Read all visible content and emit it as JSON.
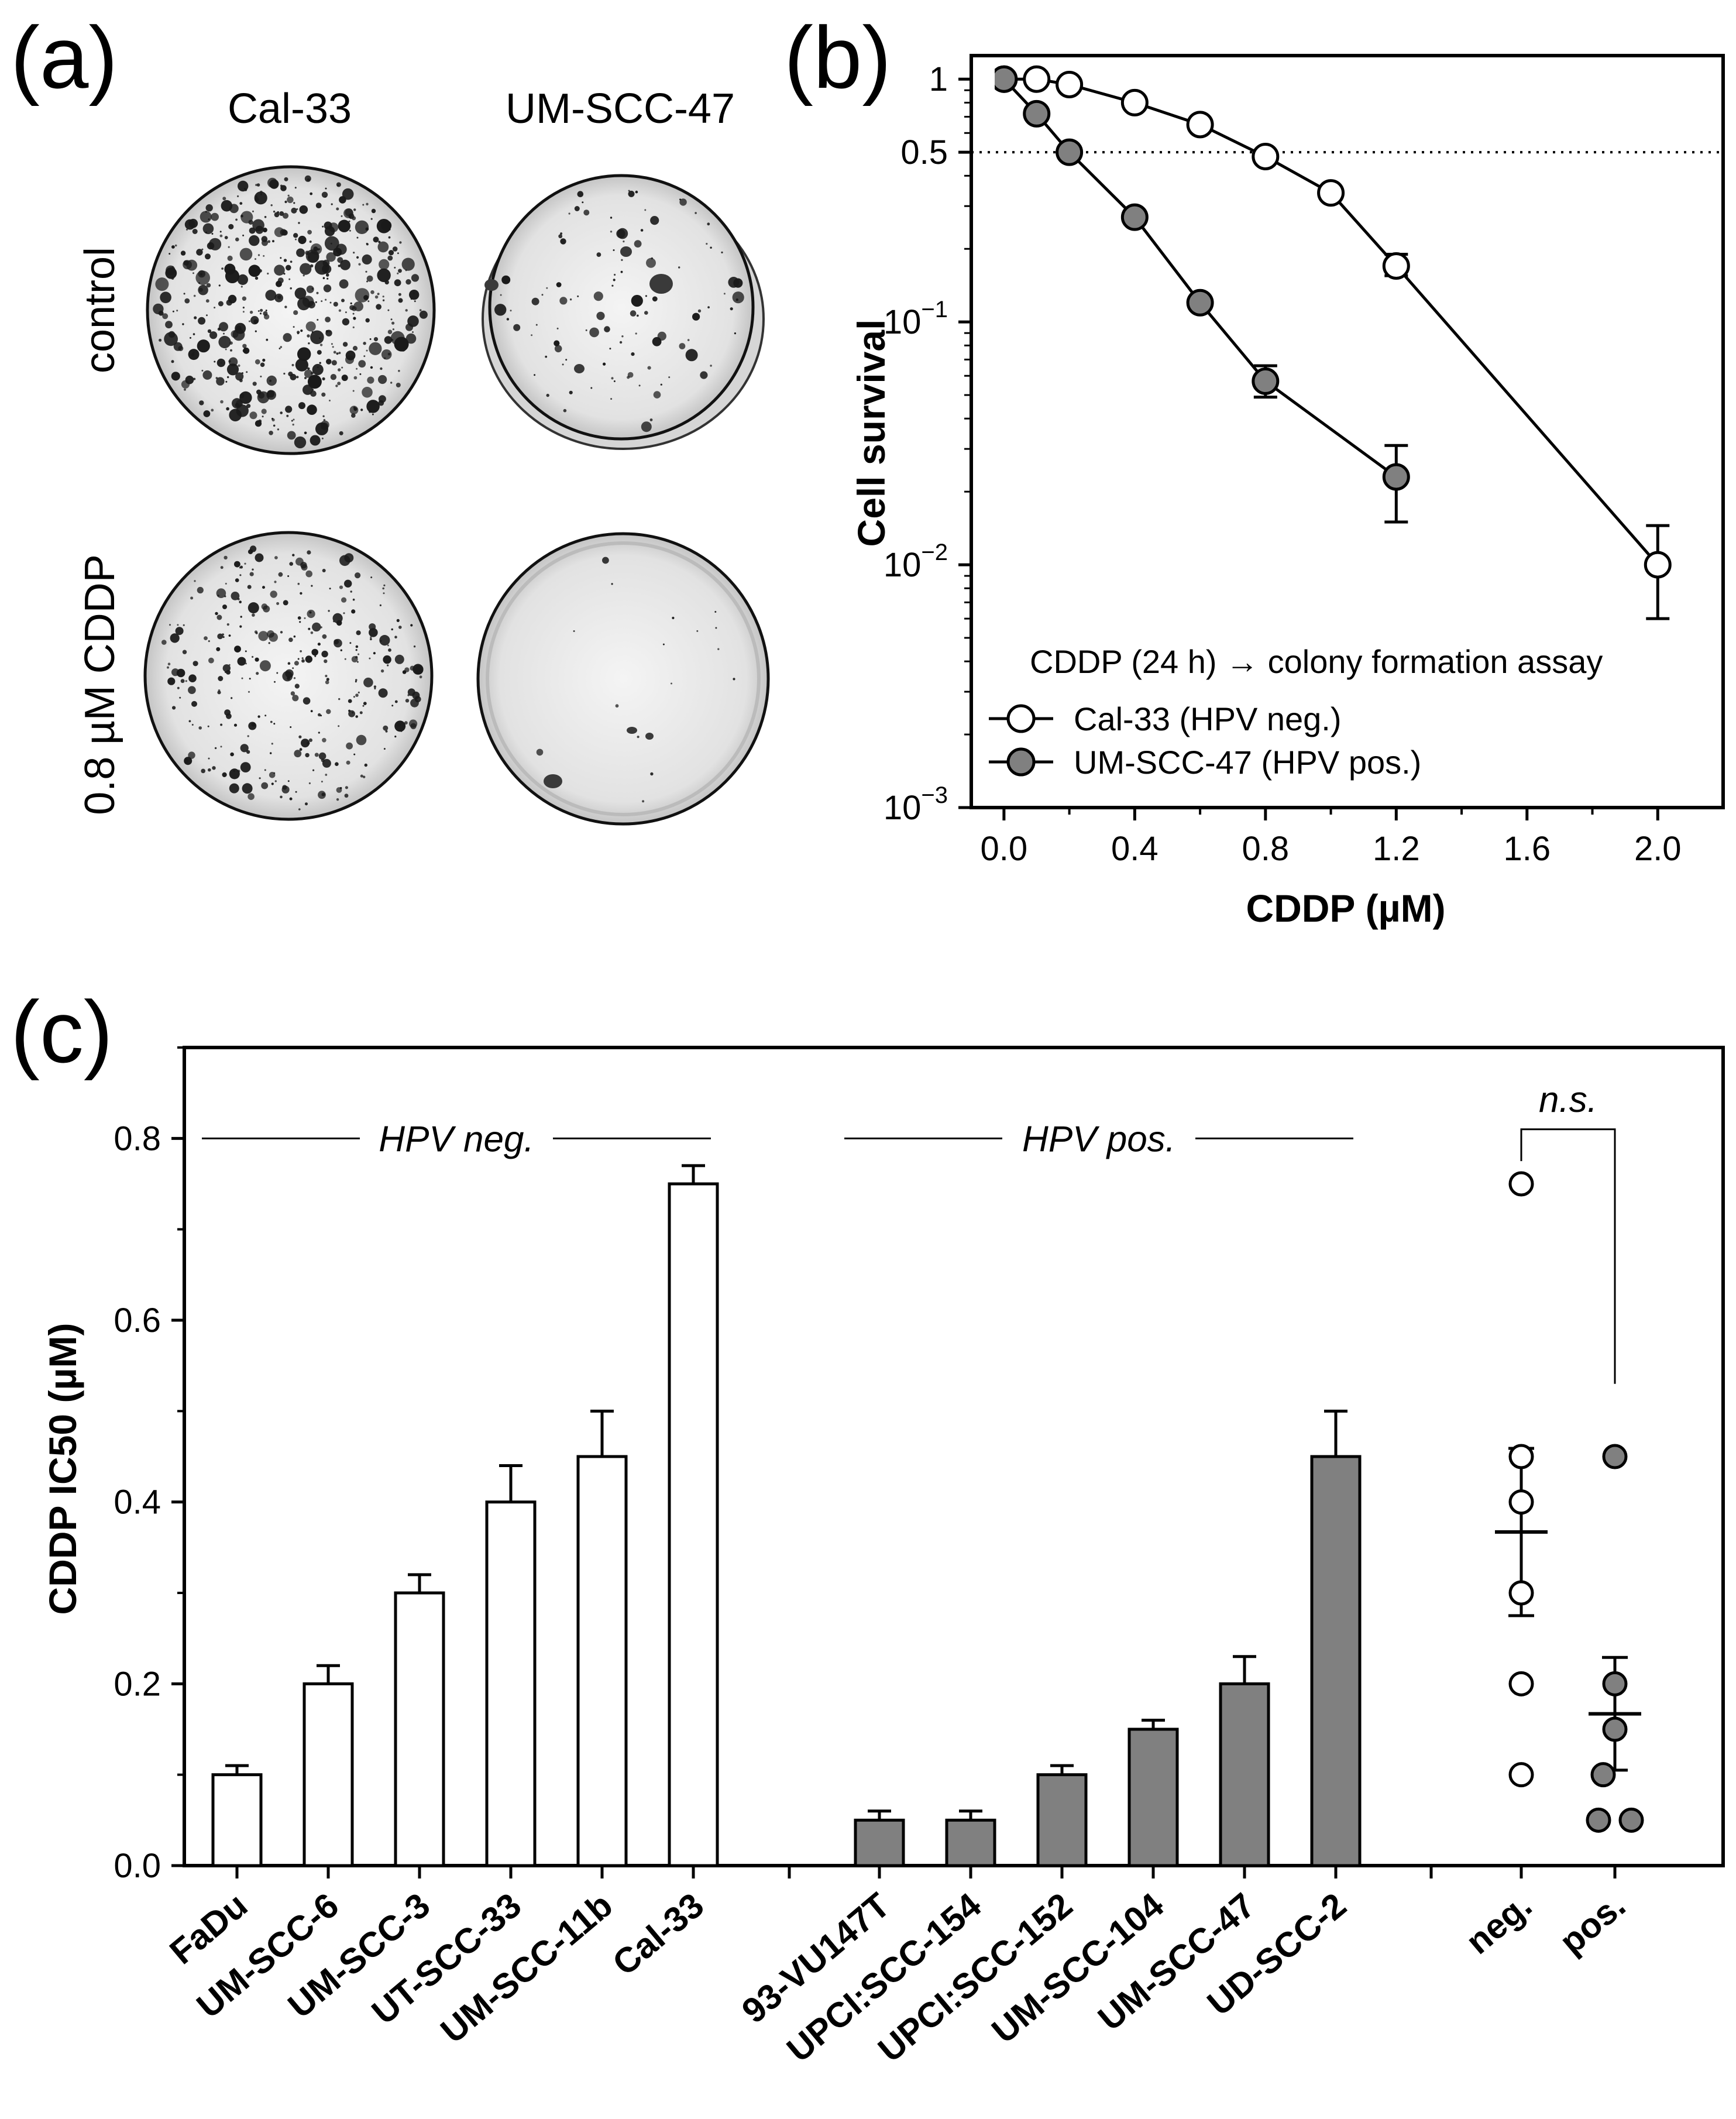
{
  "panels": {
    "a": {
      "label": "(a)",
      "col_labels": [
        "Cal-33",
        "UM-SCC-47"
      ],
      "row_labels": [
        "control",
        "0.8 µM CDDP"
      ]
    },
    "b": {
      "label": "(b)"
    },
    "c": {
      "label": "(c)"
    }
  },
  "chart_data": [
    {
      "id": "b",
      "type": "line",
      "xlabel": "CDDP (µM)",
      "ylabel": "Cell survival",
      "yscale": "log",
      "xlim": [
        -0.1,
        2.2
      ],
      "ylim": [
        0.001,
        1.25
      ],
      "x_ticks": [
        0.0,
        0.4,
        0.8,
        1.2,
        1.6,
        2.0
      ],
      "x_tick_labels": [
        "0.0",
        "0.4",
        "0.8",
        "1.2",
        "1.6",
        "2.0"
      ],
      "y_ticks": [
        1,
        0.5,
        0.1,
        0.01,
        0.001
      ],
      "y_tick_labels": [
        {
          "base": "1",
          "exp": ""
        },
        {
          "base": "0.5",
          "exp": ""
        },
        {
          "base": "10",
          "exp": "−1"
        },
        {
          "base": "10",
          "exp": "−2"
        },
        {
          "base": "10",
          "exp": "−3"
        }
      ],
      "reference_line": {
        "y": 0.5,
        "style": "dotted"
      },
      "legend_title": "CDDP (24 h) → colony formation assay",
      "series": [
        {
          "name": "Cal-33 (HPV neg.)",
          "fill": "#ffffff",
          "points": [
            {
              "x": 0.0,
              "y": 1.0
            },
            {
              "x": 0.1,
              "y": 1.0
            },
            {
              "x": 0.2,
              "y": 0.95
            },
            {
              "x": 0.4,
              "y": 0.8
            },
            {
              "x": 0.6,
              "y": 0.65
            },
            {
              "x": 0.8,
              "y": 0.48
            },
            {
              "x": 1.0,
              "y": 0.34
            },
            {
              "x": 1.2,
              "y": 0.17,
              "err_lo": 0.155,
              "err_hi": 0.19
            },
            {
              "x": 2.0,
              "y": 0.01,
              "err_lo": 0.006,
              "err_hi": 0.0145
            }
          ]
        },
        {
          "name": "UM-SCC-47 (HPV pos.)",
          "fill": "#808080",
          "points": [
            {
              "x": 0.0,
              "y": 1.0
            },
            {
              "x": 0.1,
              "y": 0.72
            },
            {
              "x": 0.2,
              "y": 0.5
            },
            {
              "x": 0.4,
              "y": 0.27
            },
            {
              "x": 0.6,
              "y": 0.12
            },
            {
              "x": 0.8,
              "y": 0.057,
              "err_lo": 0.049,
              "err_hi": 0.066
            },
            {
              "x": 1.2,
              "y": 0.023,
              "err_lo": 0.015,
              "err_hi": 0.031
            }
          ]
        }
      ]
    },
    {
      "id": "c",
      "type": "bar",
      "ylabel": "CDDP IC50 (µM)",
      "ylim": [
        0,
        0.9
      ],
      "y_ticks": [
        0.0,
        0.2,
        0.4,
        0.6,
        0.8
      ],
      "y_tick_labels": [
        "0.0",
        "0.2",
        "0.4",
        "0.6",
        "0.8"
      ],
      "group_labels": [
        {
          "text": "HPV neg.",
          "from": 0,
          "to": 5
        },
        {
          "text": "HPV pos.",
          "from": 6,
          "to": 11
        }
      ],
      "bars": [
        {
          "label": "FaDu",
          "value": 0.1,
          "err": 0.01,
          "fill": "#ffffff"
        },
        {
          "label": "UM-SCC-6",
          "value": 0.2,
          "err": 0.02,
          "fill": "#ffffff"
        },
        {
          "label": "UM-SCC-3",
          "value": 0.3,
          "err": 0.02,
          "fill": "#ffffff"
        },
        {
          "label": "UT-SCC-33",
          "value": 0.4,
          "err": 0.04,
          "fill": "#ffffff"
        },
        {
          "label": "UM-SCC-11b",
          "value": 0.45,
          "err": 0.05,
          "fill": "#ffffff"
        },
        {
          "label": "Cal-33",
          "value": 0.75,
          "err": 0.02,
          "fill": "#ffffff"
        },
        {
          "label": "93-VU147T",
          "value": 0.05,
          "err": 0.01,
          "fill": "#808080"
        },
        {
          "label": "UPCI:SCC-154",
          "value": 0.05,
          "err": 0.01,
          "fill": "#808080"
        },
        {
          "label": "UPCI:SCC-152",
          "value": 0.1,
          "err": 0.01,
          "fill": "#808080"
        },
        {
          "label": "UM-SCC-104",
          "value": 0.15,
          "err": 0.01,
          "fill": "#808080"
        },
        {
          "label": "UM-SCC-47",
          "value": 0.2,
          "err": 0.03,
          "fill": "#808080"
        },
        {
          "label": "UD-SCC-2",
          "value": 0.45,
          "err": 0.05,
          "fill": "#808080"
        }
      ],
      "scatter_groups": [
        {
          "label": "neg.",
          "fill": "#ffffff",
          "values": [
            0.75,
            0.45,
            0.4,
            0.3,
            0.2,
            0.1
          ],
          "mean": 0.367,
          "sem": 0.092
        },
        {
          "label": "pos.",
          "fill": "#808080",
          "values": [
            0.45,
            0.2,
            0.15,
            0.1,
            0.05,
            0.05
          ],
          "mean": 0.167,
          "sem": 0.062
        }
      ],
      "significance": "n.s."
    }
  ]
}
